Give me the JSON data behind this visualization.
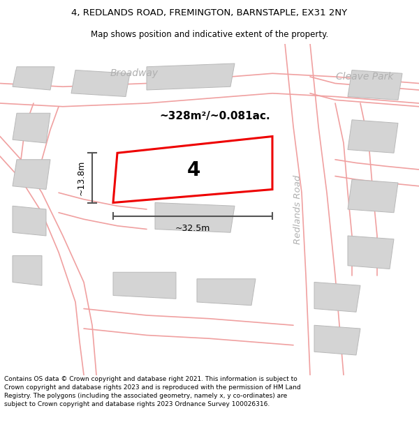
{
  "title_line1": "4, REDLANDS ROAD, FREMINGTON, BARNSTAPLE, EX31 2NY",
  "title_line2": "Map shows position and indicative extent of the property.",
  "footer_text": "Contains OS data © Crown copyright and database right 2021. This information is subject to Crown copyright and database rights 2023 and is reproduced with the permission of HM Land Registry. The polygons (including the associated geometry, namely x, y co-ordinates) are subject to Crown copyright and database rights 2023 Ordnance Survey 100026316.",
  "area_label": "~328m²/~0.081ac.",
  "width_label": "~32.5m",
  "height_label": "~13.8m",
  "plot_number": "4",
  "bg_color": "#ffffff",
  "map_bg": "#f8f8f8",
  "road_color": "#f0a0a0",
  "building_color": "#d4d4d4",
  "highlight_color": "#ee0000",
  "street_label_color": "#b0b0b0",
  "dim_color": "#555555",
  "title_fontsize": 9.5,
  "subtitle_fontsize": 8.5,
  "footer_fontsize": 6.5
}
